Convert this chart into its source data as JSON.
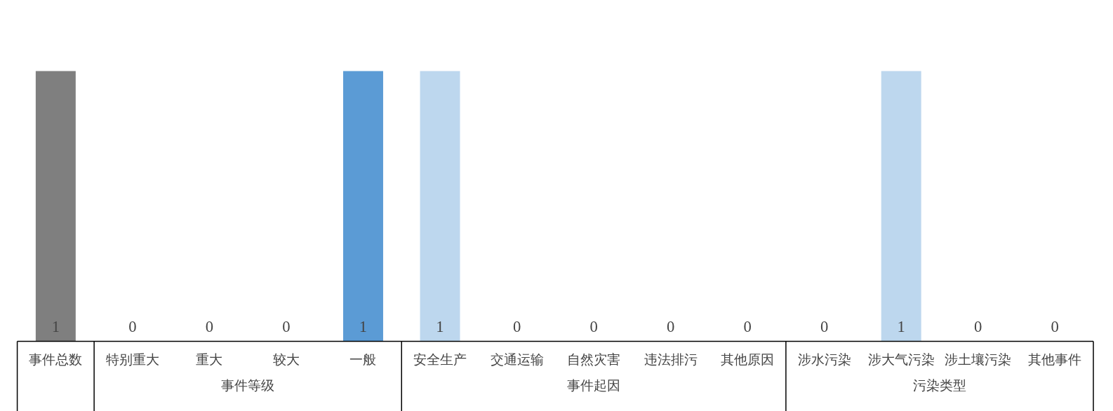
{
  "chart_data": {
    "type": "bar",
    "categories": [
      "事件总数",
      "特别重大",
      "重大",
      "较大",
      "一般",
      "安全生产",
      "交通运输",
      "自然灾害",
      "违法排污",
      "其他原因",
      "涉水污染",
      "涉大气污染",
      "涉土壤污染",
      "其他事件"
    ],
    "values": [
      1,
      0,
      0,
      0,
      1,
      1,
      0,
      0,
      0,
      0,
      0,
      1,
      0,
      0
    ],
    "colors": [
      "#7f7f7f",
      "#5b9bd5",
      "#5b9bd5",
      "#5b9bd5",
      "#5b9bd5",
      "#bdd7ee",
      "#bdd7ee",
      "#bdd7ee",
      "#bdd7ee",
      "#bdd7ee",
      "#bdd7ee",
      "#bdd7ee",
      "#bdd7ee",
      "#bdd7ee"
    ],
    "data_labels": true,
    "annotations": [
      "事件等级",
      "事件起因",
      "污染类型"
    ]
  }
}
